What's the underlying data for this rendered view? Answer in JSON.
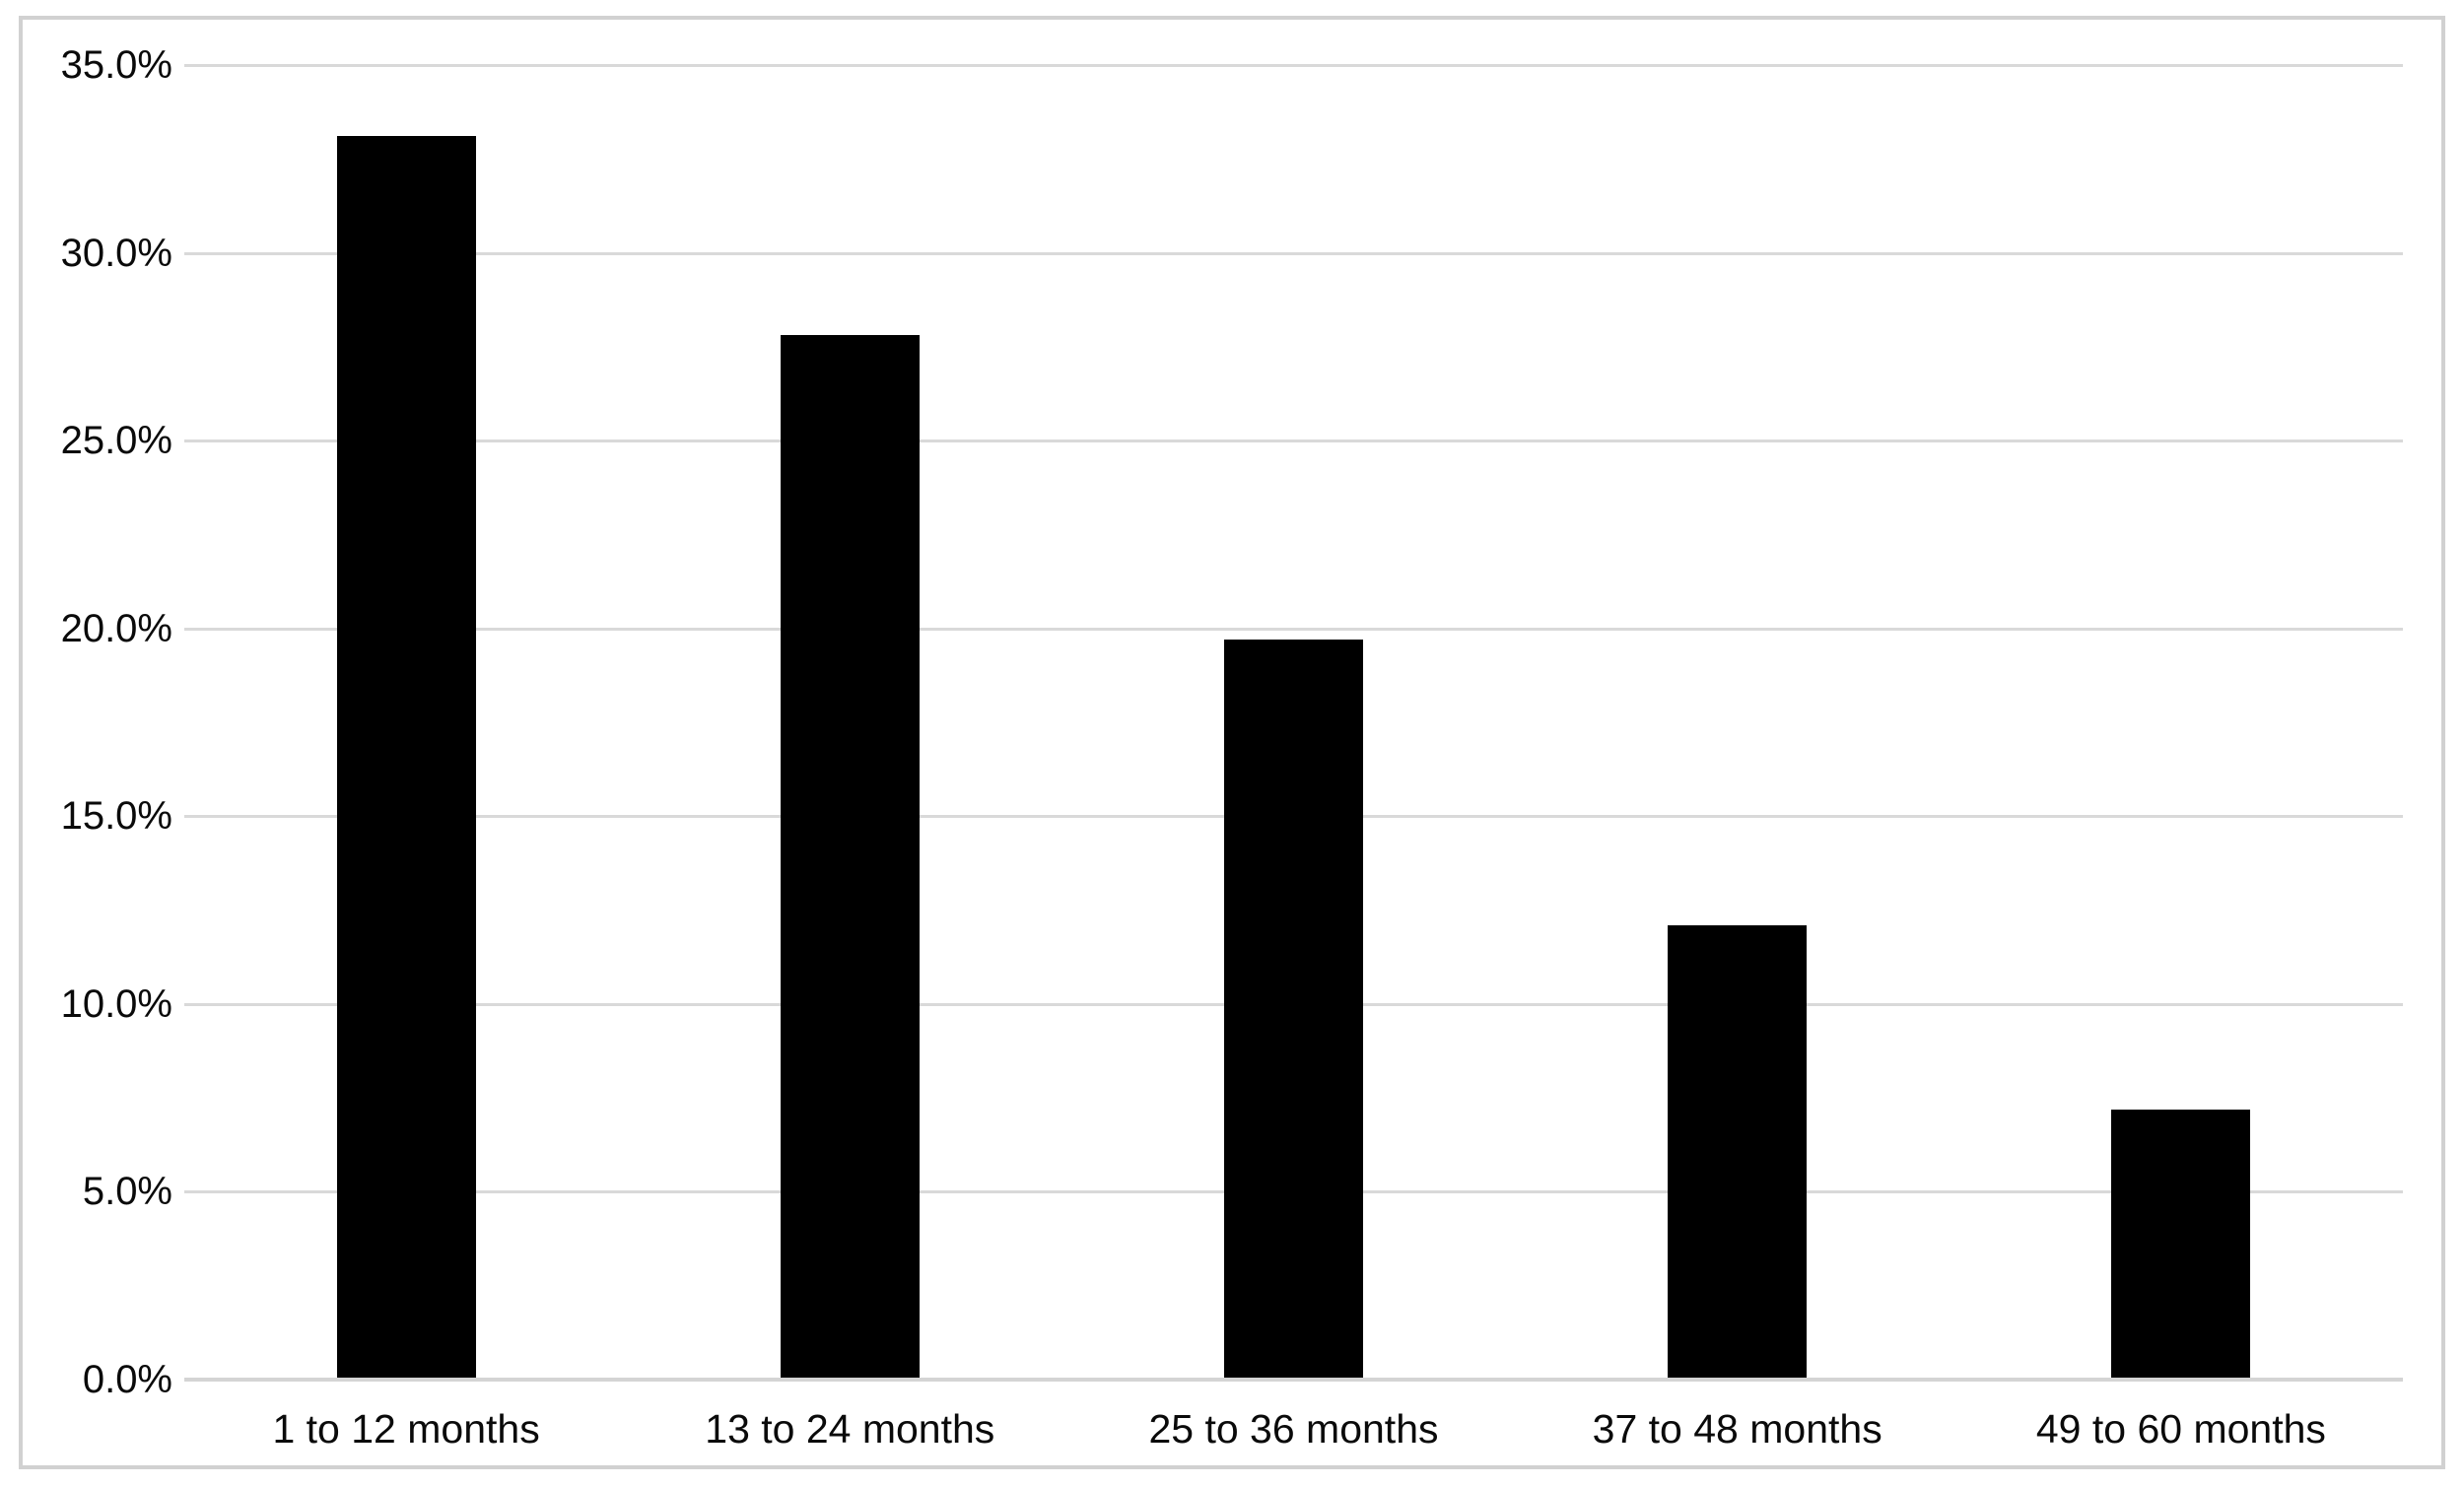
{
  "chart_data": {
    "type": "bar",
    "title": "",
    "categories": [
      "1 to 12 months",
      "13 to 24 months",
      "25 to 36 months",
      "37 to 48 months",
      "49 to 60 months"
    ],
    "values": [
      33.1,
      27.8,
      19.7,
      12.1,
      7.2
    ],
    "value_unit": "%",
    "xlabel": "",
    "ylabel": "",
    "ylim": [
      0,
      35
    ],
    "ytick_step": 5,
    "ytick_labels": [
      "0.0%",
      "5.0%",
      "10.0%",
      "15.0%",
      "20.0%",
      "25.0%",
      "30.0%",
      "35.0%"
    ],
    "grid": true,
    "legend": false,
    "colors": {
      "bar": "#000000",
      "gridline": "#d9d9d9",
      "axis_baseline": "#d4d4d4",
      "frame_border": "#d1d1d1",
      "text": "#0a0a0a",
      "background": "#ffffff"
    }
  }
}
